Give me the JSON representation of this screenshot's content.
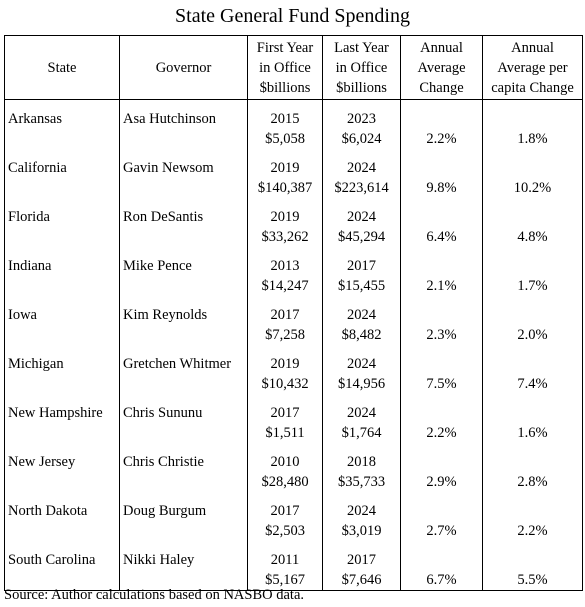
{
  "title": "State General Fund Spending",
  "headers": {
    "state": "State",
    "governor": "Governor",
    "first_year": [
      "First Year",
      "in Office",
      "$billions"
    ],
    "last_year": [
      "Last Year",
      "in Office",
      "$billions"
    ],
    "annual_avg": [
      "Annual",
      "Average",
      "Change"
    ],
    "annual_pc": [
      "Annual",
      "Average per",
      "capita Change"
    ]
  },
  "rows": [
    {
      "state": "Arkansas",
      "governor": "Asa Hutchinson",
      "first_year": "2015",
      "first_value": "$5,058",
      "last_year": "2023",
      "last_value": "$6,024",
      "avg_change": "2.2%",
      "pc_change": "1.8%"
    },
    {
      "state": "California",
      "governor": "Gavin Newsom",
      "first_year": "2019",
      "first_value": "$140,387",
      "last_year": "2024",
      "last_value": "$223,614",
      "avg_change": "9.8%",
      "pc_change": "10.2%"
    },
    {
      "state": "Florida",
      "governor": "Ron DeSantis",
      "first_year": "2019",
      "first_value": "$33,262",
      "last_year": "2024",
      "last_value": "$45,294",
      "avg_change": "6.4%",
      "pc_change": "4.8%"
    },
    {
      "state": "Indiana",
      "governor": "Mike Pence",
      "first_year": "2013",
      "first_value": "$14,247",
      "last_year": "2017",
      "last_value": "$15,455",
      "avg_change": "2.1%",
      "pc_change": "1.7%"
    },
    {
      "state": "Iowa",
      "governor": "Kim Reynolds",
      "first_year": "2017",
      "first_value": "$7,258",
      "last_year": "2024",
      "last_value": "$8,482",
      "avg_change": "2.3%",
      "pc_change": "2.0%"
    },
    {
      "state": "Michigan",
      "governor": "Gretchen Whitmer",
      "first_year": "2019",
      "first_value": "$10,432",
      "last_year": "2024",
      "last_value": "$14,956",
      "avg_change": "7.5%",
      "pc_change": "7.4%"
    },
    {
      "state": "New Hampshire",
      "governor": "Chris Sununu",
      "first_year": "2017",
      "first_value": "$1,511",
      "last_year": "2024",
      "last_value": "$1,764",
      "avg_change": "2.2%",
      "pc_change": "1.6%"
    },
    {
      "state": "New Jersey",
      "governor": "Chris Christie",
      "first_year": "2010",
      "first_value": "$28,480",
      "last_year": "2018",
      "last_value": "$35,733",
      "avg_change": "2.9%",
      "pc_change": "2.8%"
    },
    {
      "state": "North Dakota",
      "governor": "Doug Burgum",
      "first_year": "2017",
      "first_value": "$2,503",
      "last_year": "2024",
      "last_value": "$3,019",
      "avg_change": "2.7%",
      "pc_change": "2.2%"
    },
    {
      "state": "South Carolina",
      "governor": "Nikki Haley",
      "first_year": "2011",
      "first_value": "$5,167",
      "last_year": "2017",
      "last_value": "$7,646",
      "avg_change": "6.7%",
      "pc_change": "5.5%"
    }
  ],
  "source": "Source: Author calculations based on NASBO data."
}
